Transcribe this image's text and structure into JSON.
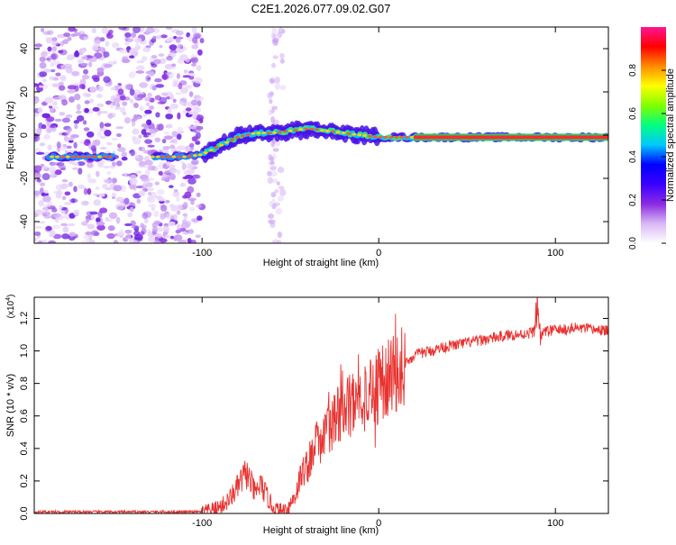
{
  "figure": {
    "title": "C2E1.2026.077.09.02.G07"
  },
  "chart_data": [
    {
      "type": "heatmap",
      "title": "C2E1.2026.077.09.02.G07",
      "xlabel": "Height of straight line (km)",
      "ylabel": "Frequency (Hz)",
      "xlim": [
        -195,
        130
      ],
      "ylim": [
        -50,
        50
      ],
      "xticks": [
        -100,
        0,
        100
      ],
      "xtick_labels": [
        "-100",
        "0",
        "100"
      ],
      "yticks": [
        -40,
        -20,
        0,
        20,
        40
      ],
      "ytick_labels": [
        "-40",
        "-20",
        "0",
        "20",
        "40"
      ],
      "ridge": {
        "x": [
          -195,
          -170,
          -150,
          -130,
          -110,
          -100,
          -90,
          -80,
          -70,
          -60,
          -50,
          -40,
          -30,
          -20,
          -10,
          0,
          10,
          20,
          40,
          60,
          80,
          100,
          130
        ],
        "frequency_hz": [
          -10,
          -10,
          -10,
          -10,
          -10,
          -9,
          -5,
          -1,
          1,
          1,
          2,
          3,
          2,
          1,
          0,
          -1,
          -1,
          -1,
          -1,
          -1,
          -1,
          -1,
          -1
        ]
      },
      "colorbar": {
        "label": "Normalized spectral amplitude",
        "range": [
          0,
          1
        ],
        "ticks": [
          0.0,
          0.2,
          0.4,
          0.6,
          0.8
        ],
        "tick_labels": [
          "0.0",
          "0.2",
          "0.4",
          "0.6",
          "0.8"
        ],
        "colormap": [
          "#ffffff",
          "#d9b8f5",
          "#8a2be2",
          "#3a00ff",
          "#0000ff",
          "#00c8ff",
          "#00ff7f",
          "#7fff00",
          "#ffff00",
          "#ff8c00",
          "#ff0000",
          "#ff1493"
        ]
      }
    },
    {
      "type": "line",
      "xlabel": "Height of straight line (km)",
      "ylabel": "SNR (10 * v/v)",
      "y_multiplier": "(x10",
      "y_multiplier_exp": "4",
      "y_multiplier_close": ")",
      "xlim": [
        -195,
        130
      ],
      "ylim": [
        0,
        1.33
      ],
      "xticks": [
        -100,
        0,
        100
      ],
      "xtick_labels": [
        "-100",
        "0",
        "100"
      ],
      "yticks": [
        0.0,
        0.2,
        0.4,
        0.6,
        0.8,
        1.0,
        1.2
      ],
      "ytick_labels": [
        "0.0",
        "0.2",
        "0.4",
        "0.6",
        "0.8",
        "1.0",
        "1.2"
      ],
      "series": [
        {
          "name": "SNR",
          "color": "#e8322f",
          "x": [
            -195,
            -180,
            -170,
            -160,
            -150,
            -140,
            -130,
            -120,
            -110,
            -100,
            -95,
            -90,
            -85,
            -80,
            -78,
            -75,
            -72,
            -70,
            -67,
            -65,
            -62,
            -60,
            -57,
            -55,
            -52,
            -50,
            -47,
            -45,
            -42,
            -40,
            -37,
            -35,
            -32,
            -30,
            -27,
            -25,
            -22,
            -20,
            -17,
            -15,
            -12,
            -10,
            -7,
            -5,
            -2,
            0,
            3,
            5,
            8,
            10,
            12,
            15,
            18,
            20,
            25,
            30,
            35,
            40,
            45,
            50,
            55,
            60,
            65,
            70,
            75,
            80,
            85,
            88,
            90,
            92,
            95,
            100,
            105,
            110,
            115,
            120,
            125,
            130
          ],
          "values": [
            0.01,
            0.01,
            0.01,
            0.01,
            0.01,
            0.01,
            0.01,
            0.01,
            0.01,
            0.01,
            0.02,
            0.04,
            0.08,
            0.16,
            0.2,
            0.25,
            0.18,
            0.12,
            0.18,
            0.14,
            0.08,
            0.04,
            0.02,
            0.02,
            0.03,
            0.06,
            0.12,
            0.2,
            0.28,
            0.3,
            0.38,
            0.45,
            0.46,
            0.5,
            0.55,
            0.6,
            0.62,
            0.64,
            0.66,
            0.68,
            0.7,
            0.72,
            0.73,
            0.74,
            0.76,
            0.78,
            0.8,
            0.82,
            0.85,
            0.88,
            0.9,
            0.93,
            0.95,
            0.97,
            0.99,
            1.0,
            1.02,
            1.03,
            1.04,
            1.05,
            1.06,
            1.07,
            1.08,
            1.09,
            1.1,
            1.1,
            1.11,
            1.12,
            1.2,
            1.1,
            1.12,
            1.13,
            1.13,
            1.14,
            1.14,
            1.13,
            1.13,
            1.12
          ]
        }
      ]
    }
  ]
}
